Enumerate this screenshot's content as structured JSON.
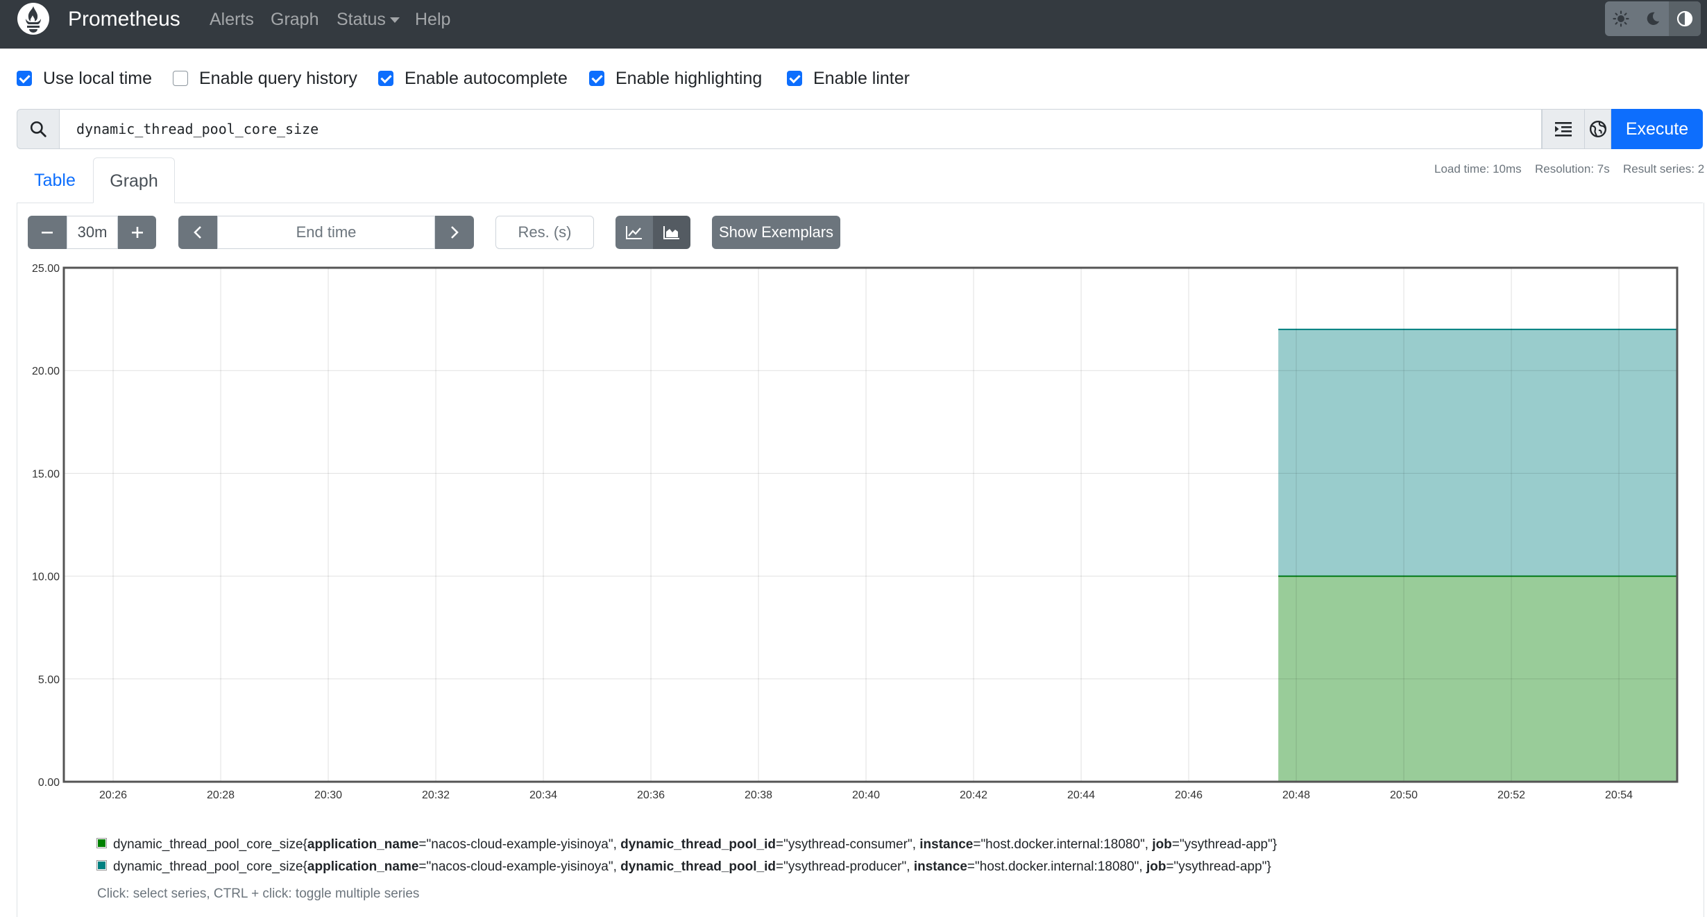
{
  "navbar": {
    "brand": "Prometheus",
    "links": [
      "Alerts",
      "Graph",
      "Status",
      "Help"
    ]
  },
  "options": [
    {
      "label": "Use local time",
      "checked": true
    },
    {
      "label": "Enable query history",
      "checked": false
    },
    {
      "label": "Enable autocomplete",
      "checked": true
    },
    {
      "label": "Enable highlighting",
      "checked": true
    },
    {
      "label": "Enable linter",
      "checked": true
    }
  ],
  "query": {
    "expression": "dynamic_thread_pool_core_size",
    "execute_label": "Execute"
  },
  "tabs": {
    "table": "Table",
    "graph": "Graph",
    "active": "Graph"
  },
  "stats": {
    "load_time": "Load time: 10ms",
    "resolution": "Resolution: 7s",
    "result_series": "Result series: 2"
  },
  "controls": {
    "range": "30m",
    "end_time_placeholder": "End time",
    "resolution_placeholder": "Res. (s)",
    "exemplars_label": "Show Exemplars",
    "stacked": true
  },
  "legend": {
    "items": [
      {
        "color": "#008000",
        "metric": "dynamic_thread_pool_core_size",
        "labels": [
          {
            "k": "application_name",
            "v": "\"nacos-cloud-example-yisinoya\""
          },
          {
            "k": "dynamic_thread_pool_id",
            "v": "\"ysythread-consumer\""
          },
          {
            "k": "instance",
            "v": "\"host.docker.internal:18080\""
          },
          {
            "k": "job",
            "v": "\"ysythread-app\""
          }
        ]
      },
      {
        "color": "#008080",
        "metric": "dynamic_thread_pool_core_size",
        "labels": [
          {
            "k": "application_name",
            "v": "\"nacos-cloud-example-yisinoya\""
          },
          {
            "k": "dynamic_thread_pool_id",
            "v": "\"ysythread-producer\""
          },
          {
            "k": "instance",
            "v": "\"host.docker.internal:18080\""
          },
          {
            "k": "job",
            "v": "\"ysythread-app\""
          }
        ]
      }
    ],
    "hint": "Click: select series, CTRL + click: toggle multiple series"
  },
  "chart_data": {
    "type": "area",
    "stacked": true,
    "x_ticks": [
      "20:26",
      "20:28",
      "20:30",
      "20:32",
      "20:34",
      "20:36",
      "20:38",
      "20:40",
      "20:42",
      "20:44",
      "20:46",
      "20:48",
      "20:50",
      "20:52",
      "20:54"
    ],
    "y_ticks": [
      "0.00",
      "5.00",
      "10.00",
      "15.00",
      "20.00",
      "25.00"
    ],
    "xlim": [
      "20:25:05",
      "20:55:05"
    ],
    "ylim": [
      0,
      25
    ],
    "grid": true,
    "series": [
      {
        "color": "#008000",
        "start": "20:47:40",
        "end": "20:55:05",
        "value": 10
      },
      {
        "color": "#008080",
        "start": "20:47:40",
        "end": "20:55:05",
        "value": 12
      }
    ]
  }
}
